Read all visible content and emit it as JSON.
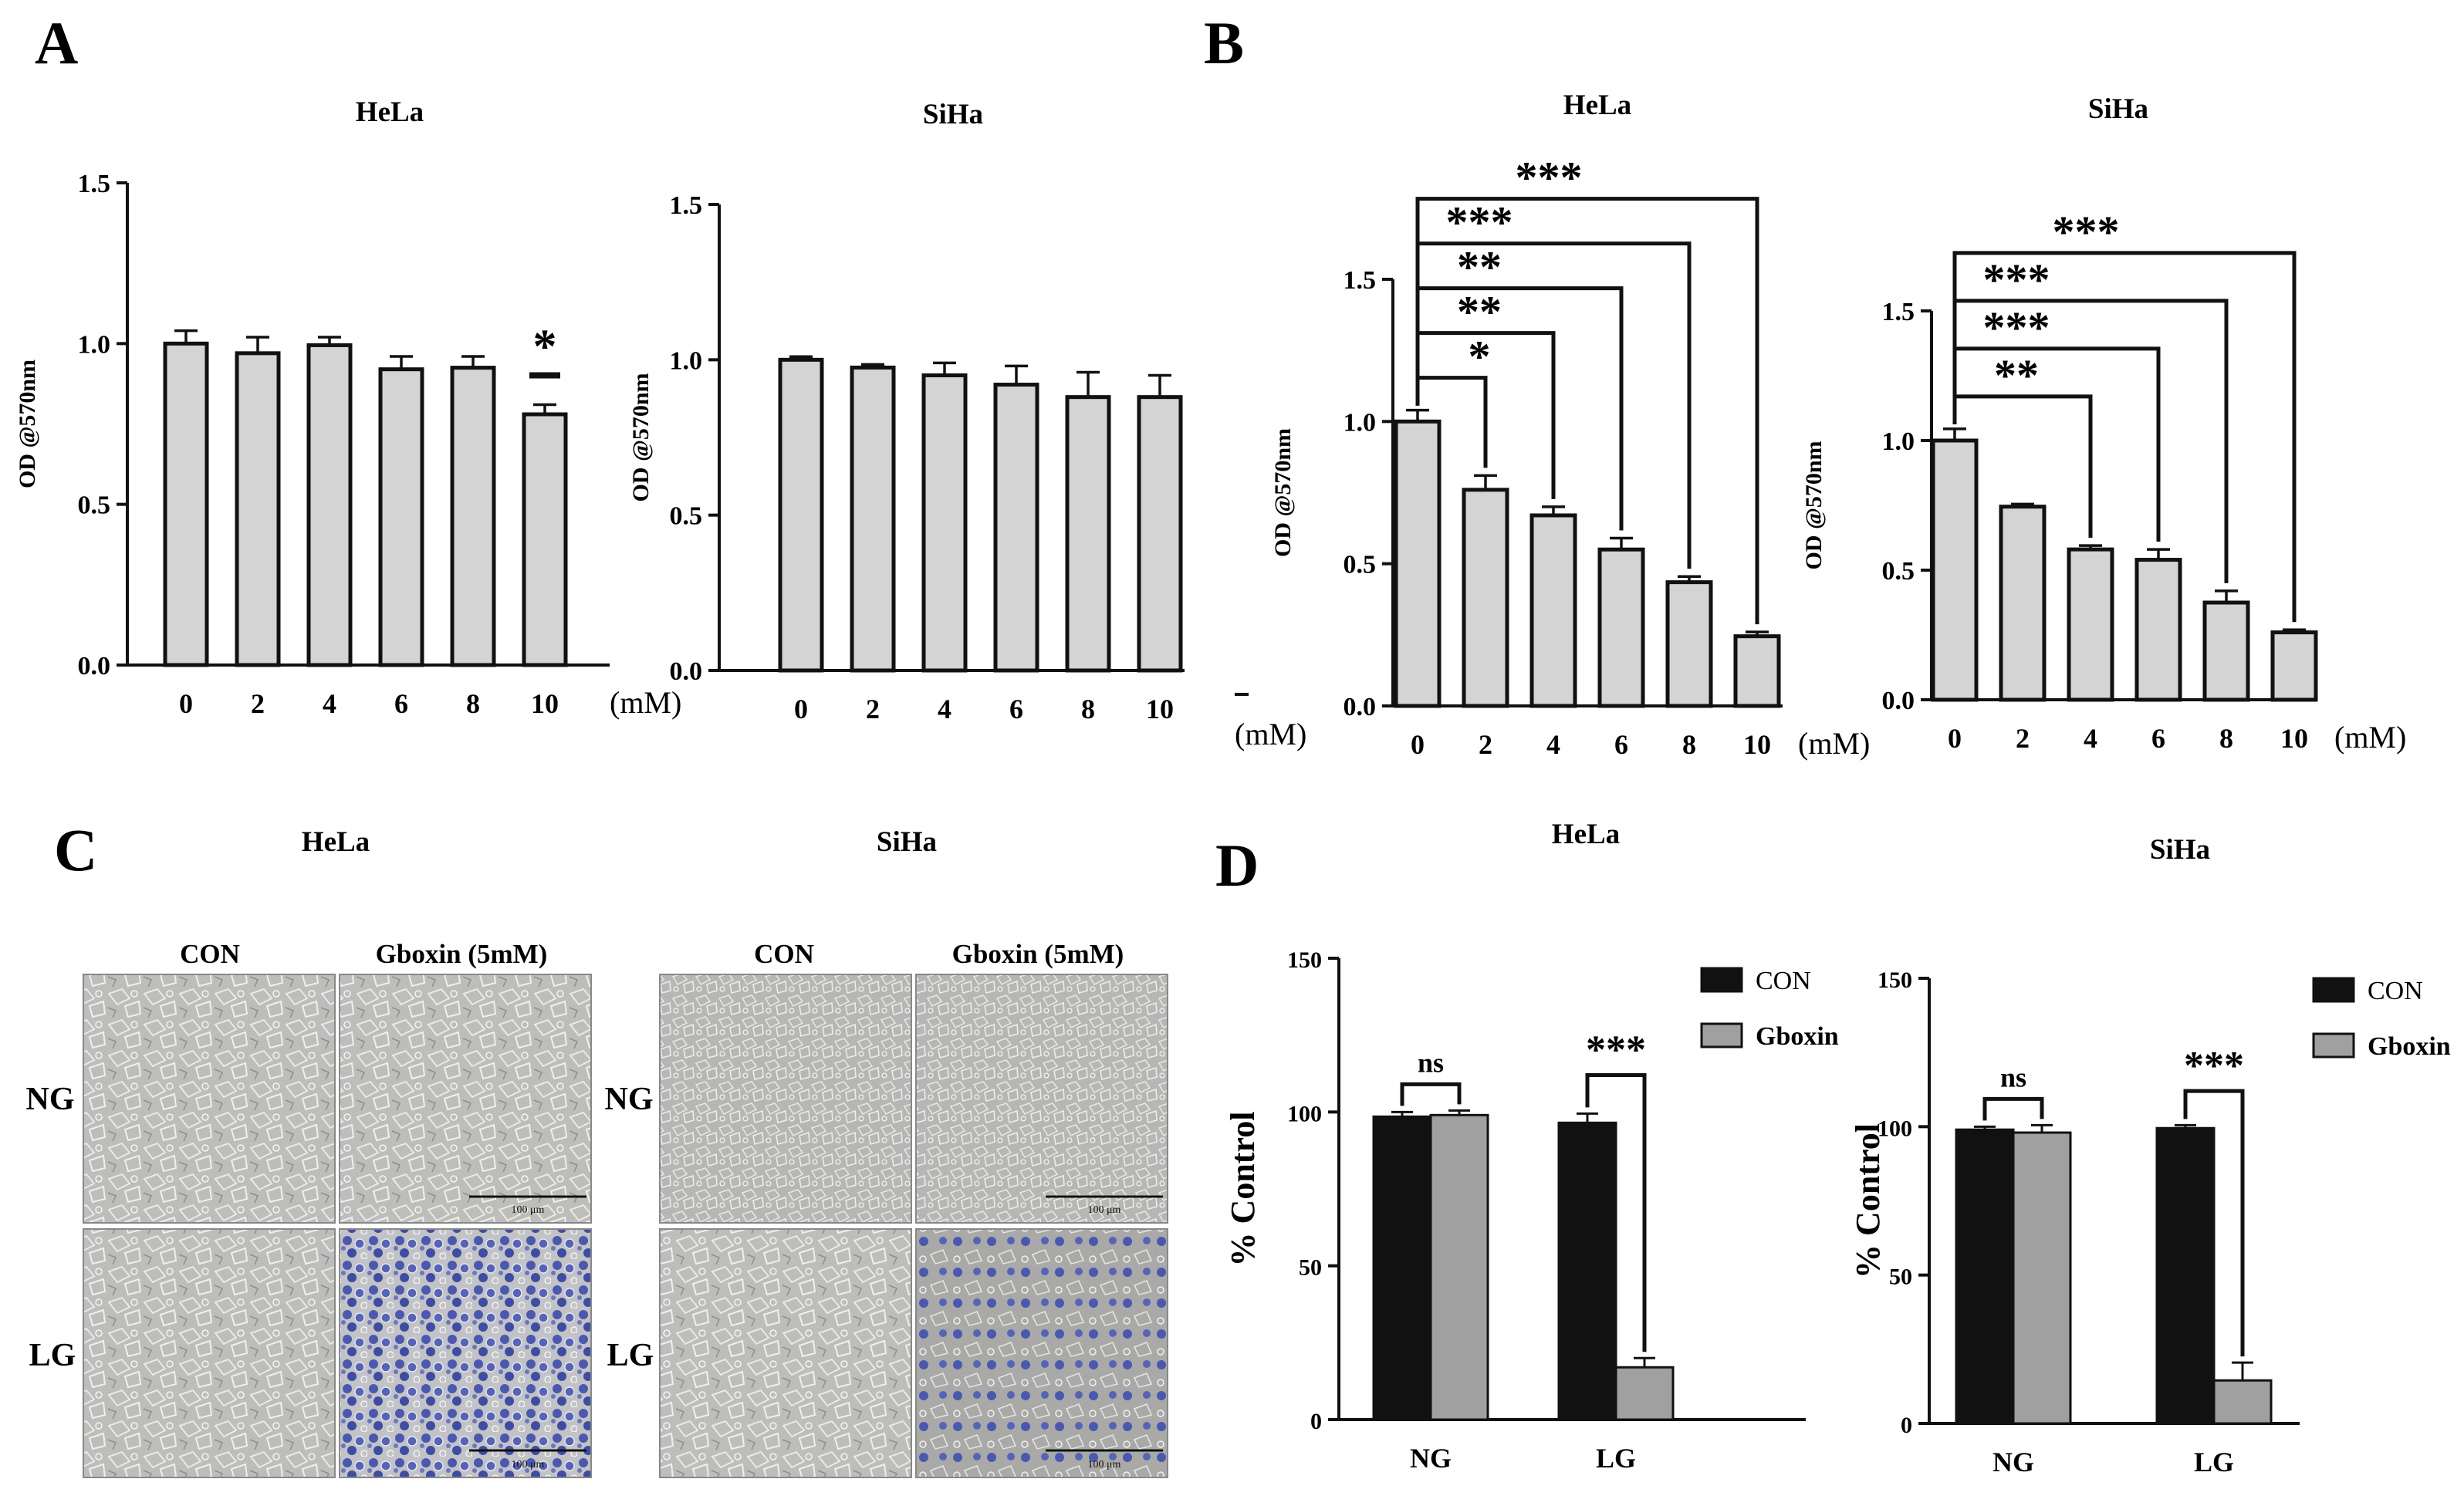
{
  "figure": {
    "panel_letters": [
      "A",
      "B",
      "C",
      "D"
    ],
    "micro_titles": {
      "hela": "HeLa",
      "siha": "SiHa"
    },
    "micro_columns": [
      "CON",
      "Gboxin (5mM)"
    ],
    "micro_rows": [
      "NG",
      "LG"
    ],
    "scale_bar_label": "100 μm"
  },
  "colors": {
    "bar_gray": "#d4d4d4",
    "bar_dark": "#111111",
    "bar_mid": "#a0a0a0",
    "cell_bg": "#bfbfbd",
    "stain": "#4a58b0"
  },
  "chart_data": [
    {
      "id": "A-HeLa",
      "type": "bar",
      "panel": "A",
      "title": "HeLa",
      "ylabel": "OD @570nm",
      "xunit": "(mM)",
      "categories": [
        "0",
        "2",
        "4",
        "6",
        "8",
        "10"
      ],
      "values": [
        1.0,
        0.97,
        0.995,
        0.92,
        0.925,
        0.78
      ],
      "errors": [
        0.04,
        0.05,
        0.025,
        0.04,
        0.035,
        0.03
      ],
      "ylim": [
        0,
        1.5
      ],
      "yticks": [
        "0.0",
        "0.5",
        "1.0",
        "1.5"
      ],
      "annotations": [
        {
          "text": "*",
          "bar": 5
        }
      ]
    },
    {
      "id": "A-SiHa",
      "type": "bar",
      "panel": "A",
      "title": "SiHa",
      "ylabel": "OD @570nm",
      "xunit": "(mM)",
      "categories": [
        "0",
        "2",
        "4",
        "6",
        "8",
        "10"
      ],
      "values": [
        1.0,
        0.975,
        0.95,
        0.92,
        0.88,
        0.88
      ],
      "errors": [
        0.01,
        0.01,
        0.04,
        0.06,
        0.08,
        0.07
      ],
      "ylim": [
        0,
        1.5
      ],
      "yticks": [
        "0.0",
        "0.5",
        "1.0",
        "1.5"
      ],
      "annotations": []
    },
    {
      "id": "B-HeLa",
      "type": "bar",
      "panel": "B",
      "title": "HeLa",
      "ylabel": "OD @570nm",
      "xunit": "(mM)",
      "stray_xunit": "(mM)",
      "categories": [
        "0",
        "2",
        "4",
        "6",
        "8",
        "10"
      ],
      "values": [
        1.0,
        0.76,
        0.67,
        0.55,
        0.435,
        0.245
      ],
      "errors": [
        0.04,
        0.05,
        0.03,
        0.04,
        0.02,
        0.015
      ],
      "ylim": [
        0,
        1.5
      ],
      "yticks": [
        "0.0",
        "0.5",
        "1.0",
        "1.5"
      ],
      "comparisons": [
        {
          "to": 1,
          "text": "*"
        },
        {
          "to": 2,
          "text": "**"
        },
        {
          "to": 3,
          "text": "**"
        },
        {
          "to": 4,
          "text": "***"
        },
        {
          "to": 5,
          "text": "***"
        }
      ]
    },
    {
      "id": "B-SiHa",
      "type": "bar",
      "panel": "B",
      "title": "SiHa",
      "ylabel": "OD @570nm",
      "xunit": "(mM)",
      "categories": [
        "0",
        "2",
        "4",
        "6",
        "8",
        "10"
      ],
      "values": [
        1.0,
        0.745,
        0.58,
        0.54,
        0.375,
        0.26
      ],
      "errors": [
        0.045,
        0.01,
        0.015,
        0.04,
        0.045,
        0.01
      ],
      "ylim": [
        0,
        1.5
      ],
      "yticks": [
        "0.0",
        "0.5",
        "1.0",
        "1.5"
      ],
      "comparisons": [
        {
          "to": 2,
          "text": "**"
        },
        {
          "to": 3,
          "text": "***"
        },
        {
          "to": 4,
          "text": "***"
        },
        {
          "to": 5,
          "text": "***"
        }
      ]
    },
    {
      "id": "D-HeLa",
      "type": "bar",
      "panel": "D",
      "title": "HeLa",
      "ylabel": "% Control",
      "categories": [
        "NG",
        "LG"
      ],
      "series": [
        {
          "name": "CON",
          "values": [
            98.5,
            96.5
          ],
          "errors": [
            1.5,
            3
          ]
        },
        {
          "name": "Gboxin",
          "values": [
            99,
            17
          ],
          "errors": [
            1.5,
            3
          ]
        }
      ],
      "ylim": [
        0,
        150
      ],
      "yticks": [
        "0",
        "50",
        "100",
        "150"
      ],
      "significance": [
        "ns",
        "***"
      ]
    },
    {
      "id": "D-SiHa",
      "type": "bar",
      "panel": "D",
      "title": "SiHa",
      "ylabel": "% Control",
      "categories": [
        "NG",
        "LG"
      ],
      "series": [
        {
          "name": "CON",
          "values": [
            99,
            99.5
          ],
          "errors": [
            1,
            1
          ]
        },
        {
          "name": "Gboxin",
          "values": [
            98,
            14.5
          ],
          "errors": [
            2.5,
            6
          ]
        }
      ],
      "ylim": [
        0,
        150
      ],
      "yticks": [
        "0",
        "50",
        "100",
        "150"
      ],
      "significance": [
        "ns",
        "***"
      ]
    }
  ]
}
